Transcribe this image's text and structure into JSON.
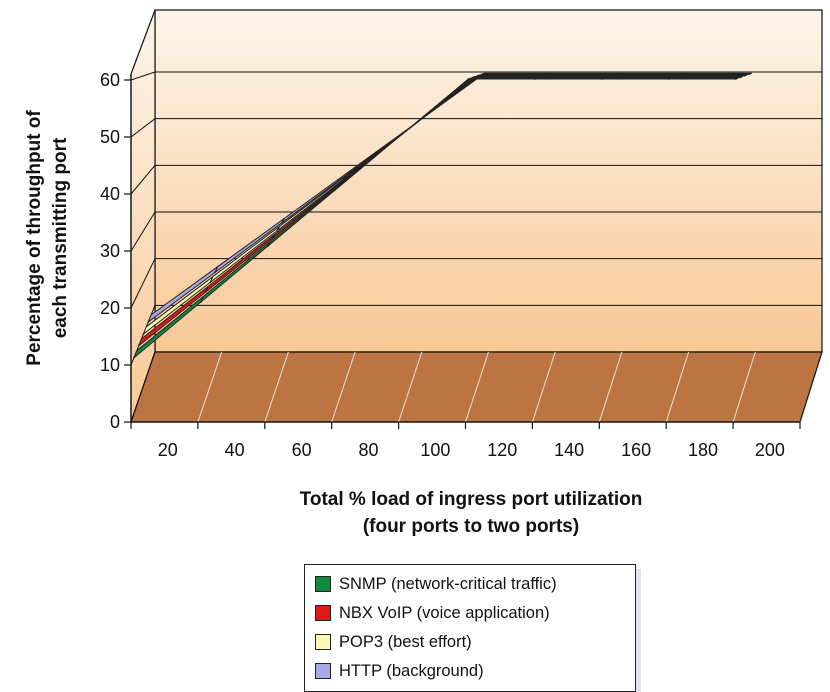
{
  "chart_data": {
    "type": "line",
    "style": "3d-ribbon",
    "xlabel": [
      "Total % load of ingress port utilization",
      "(four ports to two ports)"
    ],
    "ylabel": [
      "Percentage of throughput of",
      "each transmitting port"
    ],
    "x": [
      20,
      40,
      60,
      80,
      100,
      120,
      140,
      160,
      180,
      200
    ],
    "x_tick_labels": [
      "20",
      "40",
      "60",
      "80",
      "100",
      "120",
      "140",
      "160",
      "180",
      "200"
    ],
    "y_tick_labels": [
      "0",
      "10",
      "20",
      "30",
      "40",
      "50",
      "60"
    ],
    "ylim": [
      0,
      60
    ],
    "grid": true,
    "legend_position": "bottom",
    "series": [
      {
        "name": "SNMP (network-critical traffic)",
        "color": "#0f8a3c",
        "values": [
          10,
          20,
          30,
          40,
          50,
          60,
          60,
          60,
          60,
          60
        ]
      },
      {
        "name": "NBX VoIP (voice application)",
        "color": "#e01818",
        "values": [
          10,
          20,
          30,
          40,
          50,
          60,
          60,
          60,
          60,
          60
        ]
      },
      {
        "name": "POP3 (best effort)",
        "color": "#fbf6b4",
        "values": [
          10,
          20,
          30,
          40,
          50,
          60,
          60,
          60,
          60,
          60
        ]
      },
      {
        "name": "HTTP (background)",
        "color": "#a8a8e2",
        "values": [
          10,
          20,
          30,
          40,
          50,
          60,
          60,
          60,
          60,
          60
        ]
      }
    ],
    "colors": {
      "wall_top": "#fdf5ea",
      "wall_bottom": "#f8c896",
      "floor": "#bb7442"
    }
  }
}
